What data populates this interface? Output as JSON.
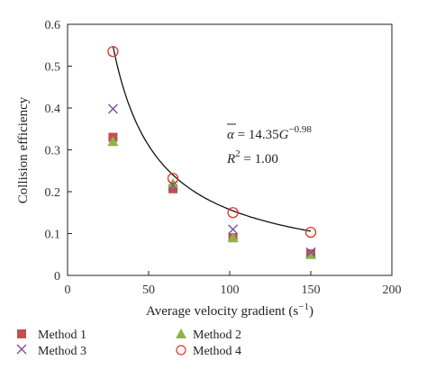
{
  "chart_data": {
    "type": "scatter",
    "xlabel": "Average velocity gradient (s",
    "xlabel_exp": "−1",
    "xlabel_close": ")",
    "ylabel": "Collision efficiency",
    "xlim": [
      0,
      200
    ],
    "ylim": [
      0,
      0.6
    ],
    "x_ticks": [
      0,
      50,
      100,
      150,
      200
    ],
    "y_ticks": [
      0,
      0.1,
      0.2,
      0.3,
      0.4,
      0.5,
      0.6
    ],
    "x_tick_labels": [
      "0",
      "50",
      "100",
      "150",
      "200"
    ],
    "y_tick_labels": [
      "0",
      "0.1",
      "0.2",
      "0.3",
      "0.4",
      "0.5",
      "0.6"
    ],
    "grid": false,
    "legend_position": "bottom",
    "series": [
      {
        "name": "Method 1",
        "marker": "square",
        "color": "#c0504d",
        "x": [
          28,
          65,
          102,
          150
        ],
        "y": [
          0.33,
          0.207,
          0.09,
          0.052
        ]
      },
      {
        "name": "Method 2",
        "marker": "triangle",
        "color": "#8cb34a",
        "x": [
          28,
          65,
          102,
          150
        ],
        "y": [
          0.32,
          0.22,
          0.09,
          0.05
        ]
      },
      {
        "name": "Method 3",
        "marker": "x",
        "color": "#7d4f9d",
        "x": [
          28,
          65,
          102,
          150
        ],
        "y": [
          0.398,
          0.215,
          0.11,
          0.055
        ]
      },
      {
        "name": "Method 4",
        "marker": "circle",
        "color": "#e0352b",
        "x": [
          28,
          65,
          102,
          150
        ],
        "y": [
          0.535,
          0.232,
          0.15,
          0.103
        ]
      }
    ],
    "fit": {
      "coef": 14.35,
      "exponent": -0.98,
      "x_range": [
        28,
        150
      ],
      "color": "#111111",
      "eq_lhs": "α",
      "eq_mid": " = 14.35",
      "eq_var": "G",
      "eq_exp": "−0.98",
      "r2_var": "R",
      "r2_exp": "2",
      "r2_rhs": " = 1.00"
    },
    "legend_order": [
      "Method 1",
      "Method 2",
      "Method 3",
      "Method 4"
    ]
  }
}
